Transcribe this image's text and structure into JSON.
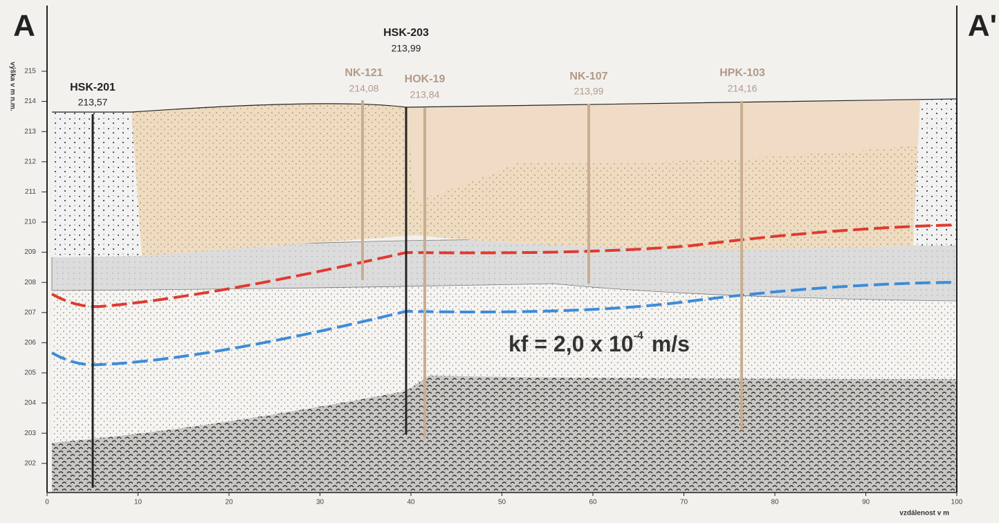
{
  "section_start": "A",
  "section_end": "A'",
  "y_axis_label": "výška v m n.m.",
  "x_axis_label": "vzdálenost v m",
  "yticks": [
    202,
    203,
    204,
    205,
    206,
    207,
    208,
    209,
    210,
    211,
    212,
    213,
    214,
    215
  ],
  "xticks": [
    0,
    10,
    20,
    30,
    40,
    50,
    60,
    70,
    80,
    90,
    100
  ],
  "boreholes": [
    {
      "name": "HSK-201",
      "elevation": "213,57"
    },
    {
      "name": "HSK-203",
      "elevation": "213,99"
    },
    {
      "name": "NK-121",
      "elevation": "214,08"
    },
    {
      "name": "HOK-19",
      "elevation": "213,84"
    },
    {
      "name": "NK-107",
      "elevation": "213,99"
    },
    {
      "name": "HPK-103",
      "elevation": "214,16"
    }
  ],
  "annotation": {
    "text": "kf = 2,0 x 10",
    "exponent": "-4",
    "unit": "m/s"
  }
}
